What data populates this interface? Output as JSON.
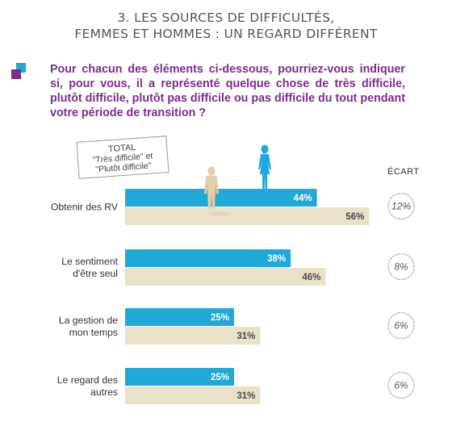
{
  "header": {
    "title_line1": "3. LES SOURCES DE DIFFICULTÉS,",
    "title_line2": "FEMMES ET HOMMES : UN REGARD DIFFÉRENT"
  },
  "question": "Pour chacun des éléments ci-dessous, pourriez-vous indiquer si, pour vous, il a représenté quelque chose de très difficile, plutôt difficile, plutôt pas difficile ou pas difficile du tout pendant votre période de transition ?",
  "total_box": {
    "line1": "TOTAL",
    "line2": "\"Très difficile\" et",
    "line3": "\"Plutôt difficile\""
  },
  "ecart_header": "ÉCART",
  "colors": {
    "women": "#1fa8d8",
    "men": "#e9e1c8",
    "accent_purple": "#7a2e8e",
    "accent_blue": "#1fa8d8"
  },
  "icons": [
    "man-figure-icon",
    "woman-figure-icon"
  ],
  "chart_data": {
    "type": "bar",
    "orientation": "horizontal",
    "categories": [
      [
        "Obtenir des RV"
      ],
      [
        "Le sentiment",
        "d'être seul"
      ],
      [
        "La gestion de",
        "mon temps"
      ],
      [
        "Le regard des",
        "autres"
      ]
    ],
    "series": [
      {
        "values": [
          44,
          38,
          25,
          25
        ]
      },
      {
        "values": [
          56,
          46,
          31,
          31
        ]
      }
    ],
    "unit": "%",
    "ecart": [
      "12%",
      "8%",
      "6%",
      "6%"
    ],
    "xlim": [
      0,
      100
    ]
  }
}
